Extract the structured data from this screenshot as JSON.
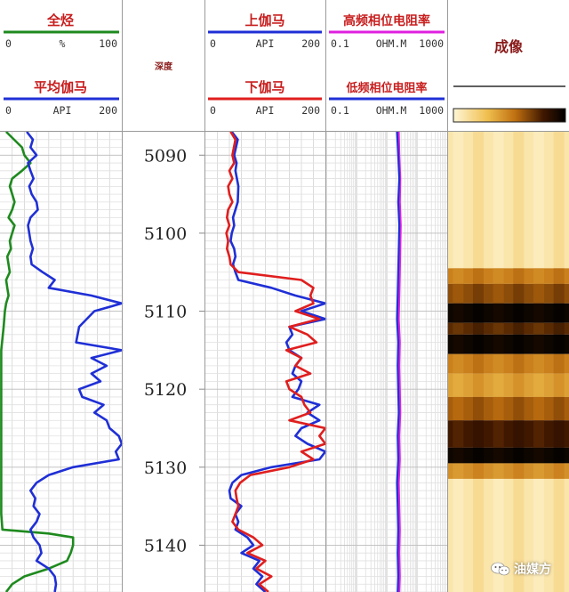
{
  "tracks": {
    "t1": {
      "curve1": {
        "name": "全烃",
        "min": "0",
        "unit": "%",
        "max": "100",
        "color": "#1e8a1e"
      },
      "curve2": {
        "name": "平均伽马",
        "min": "0",
        "unit": "API",
        "max": "200",
        "color": "#1f2fd6"
      }
    },
    "depth": {
      "title": "深度"
    },
    "t2": {
      "curve1": {
        "name": "上伽马",
        "min": "0",
        "unit": "API",
        "max": "200",
        "color": "#1f2fd6"
      },
      "curve2": {
        "name": "下伽马",
        "min": "0",
        "unit": "API",
        "max": "200",
        "color": "#e01e1e"
      }
    },
    "t3": {
      "curve1": {
        "name": "高频相位电阻率",
        "min": "0.1",
        "unit": "OHM.M",
        "max": "1000",
        "color": "#e020e0"
      },
      "curve2": {
        "name": "低频相位电阻率",
        "min": "0.1",
        "unit": "OHM.M",
        "max": "1000",
        "color": "#1f2fd6"
      }
    },
    "t4": {
      "title": "成像"
    }
  },
  "watermark": {
    "text": "油媒方",
    "icon": "wechat-icon"
  },
  "chart_data": {
    "type": "line",
    "depth_ticks": [
      "5090",
      "5100",
      "5110",
      "5120",
      "5130",
      "5140"
    ],
    "ylim": [
      5087,
      5146
    ],
    "grid": true,
    "series": [
      {
        "name": "全烃",
        "track": 1,
        "xlim": [
          0,
          100
        ],
        "points": [
          [
            5087,
            5
          ],
          [
            5089,
            18
          ],
          [
            5090,
            20
          ],
          [
            5091,
            25
          ],
          [
            5092,
            18
          ],
          [
            5093,
            10
          ],
          [
            5094,
            8
          ],
          [
            5096,
            12
          ],
          [
            5097,
            10
          ],
          [
            5098,
            7
          ],
          [
            5099,
            12
          ],
          [
            5100,
            10
          ],
          [
            5101,
            8
          ],
          [
            5102,
            9
          ],
          [
            5103,
            6
          ],
          [
            5104,
            7
          ],
          [
            5105,
            8
          ],
          [
            5106,
            5
          ],
          [
            5107,
            6
          ],
          [
            5108,
            7
          ],
          [
            5109,
            5
          ],
          [
            5110,
            4
          ],
          [
            5112,
            3
          ],
          [
            5115,
            1
          ],
          [
            5120,
            1
          ],
          [
            5125,
            1
          ],
          [
            5130,
            1
          ],
          [
            5133,
            1
          ],
          [
            5136,
            1
          ],
          [
            5138,
            2
          ],
          [
            5138.5,
            40
          ],
          [
            5139,
            60
          ],
          [
            5140,
            60
          ],
          [
            5141,
            58
          ],
          [
            5142,
            55
          ],
          [
            5143,
            40
          ],
          [
            5144,
            20
          ],
          [
            5145,
            10
          ],
          [
            5146,
            5
          ]
        ]
      },
      {
        "name": "平均伽马",
        "track": 1,
        "xlim": [
          0,
          200
        ],
        "points": [
          [
            5087,
            44
          ],
          [
            5088,
            54
          ],
          [
            5089,
            50
          ],
          [
            5090,
            60
          ],
          [
            5091,
            46
          ],
          [
            5092,
            50
          ],
          [
            5093,
            55
          ],
          [
            5094,
            48
          ],
          [
            5095,
            52
          ],
          [
            5096,
            60
          ],
          [
            5097,
            62
          ],
          [
            5098,
            50
          ],
          [
            5099,
            46
          ],
          [
            5100,
            48
          ],
          [
            5101,
            50
          ],
          [
            5102,
            54
          ],
          [
            5103,
            50
          ],
          [
            5104,
            52
          ],
          [
            5105,
            70
          ],
          [
            5106,
            90
          ],
          [
            5107,
            80
          ],
          [
            5108,
            150
          ],
          [
            5109,
            200
          ],
          [
            5110,
            155
          ],
          [
            5112,
            130
          ],
          [
            5114,
            125
          ],
          [
            5115,
            200
          ],
          [
            5116,
            150
          ],
          [
            5117,
            175
          ],
          [
            5118,
            150
          ],
          [
            5119,
            165
          ],
          [
            5120,
            130
          ],
          [
            5121,
            135
          ],
          [
            5122,
            170
          ],
          [
            5123,
            155
          ],
          [
            5124,
            175
          ],
          [
            5125,
            180
          ],
          [
            5126,
            195
          ],
          [
            5127,
            200
          ],
          [
            5128,
            190
          ],
          [
            5129,
            195
          ],
          [
            5130,
            120
          ],
          [
            5131,
            80
          ],
          [
            5132,
            60
          ],
          [
            5133,
            50
          ],
          [
            5134,
            58
          ],
          [
            5135,
            55
          ],
          [
            5136,
            65
          ],
          [
            5137,
            60
          ],
          [
            5138,
            50
          ],
          [
            5139,
            55
          ],
          [
            5140,
            65
          ],
          [
            5141,
            68
          ],
          [
            5142,
            60
          ],
          [
            5143,
            80
          ],
          [
            5144,
            90
          ],
          [
            5145,
            92
          ],
          [
            5146,
            90
          ]
        ]
      },
      {
        "name": "上伽马",
        "track": 2,
        "xlim": [
          0,
          200
        ],
        "points": [
          [
            5087,
            44
          ],
          [
            5088,
            54
          ],
          [
            5090,
            48
          ],
          [
            5091,
            52
          ],
          [
            5092,
            50
          ],
          [
            5094,
            55
          ],
          [
            5096,
            54
          ],
          [
            5097,
            50
          ],
          [
            5098,
            46
          ],
          [
            5099,
            48
          ],
          [
            5100,
            44
          ],
          [
            5101,
            42
          ],
          [
            5102,
            48
          ],
          [
            5103,
            50
          ],
          [
            5104,
            46
          ],
          [
            5105,
            50
          ],
          [
            5106,
            55
          ],
          [
            5107,
            110
          ],
          [
            5108,
            150
          ],
          [
            5109,
            200
          ],
          [
            5110,
            160
          ],
          [
            5111,
            200
          ],
          [
            5112,
            140
          ],
          [
            5113,
            145
          ],
          [
            5114,
            135
          ],
          [
            5115,
            140
          ],
          [
            5116,
            160
          ],
          [
            5117,
            150
          ],
          [
            5118,
            145
          ],
          [
            5119,
            160
          ],
          [
            5120,
            155
          ],
          [
            5121,
            145
          ],
          [
            5122,
            190
          ],
          [
            5123,
            170
          ],
          [
            5124,
            190
          ],
          [
            5125,
            160
          ],
          [
            5126,
            150
          ],
          [
            5127,
            170
          ],
          [
            5128,
            200
          ],
          [
            5129,
            190
          ],
          [
            5130,
            110
          ],
          [
            5131,
            60
          ],
          [
            5132,
            45
          ],
          [
            5133,
            40
          ],
          [
            5134,
            42
          ],
          [
            5135,
            60
          ],
          [
            5136,
            50
          ],
          [
            5137,
            55
          ],
          [
            5138,
            50
          ],
          [
            5139,
            70
          ],
          [
            5140,
            80
          ],
          [
            5141,
            60
          ],
          [
            5142,
            90
          ],
          [
            5143,
            80
          ],
          [
            5144,
            95
          ],
          [
            5145,
            85
          ],
          [
            5146,
            100
          ]
        ]
      },
      {
        "name": "下伽马",
        "track": 2,
        "xlim": [
          0,
          200
        ],
        "points": [
          [
            5087,
            42
          ],
          [
            5088,
            50
          ],
          [
            5090,
            45
          ],
          [
            5091,
            48
          ],
          [
            5092,
            40
          ],
          [
            5093,
            45
          ],
          [
            5094,
            38
          ],
          [
            5095,
            40
          ],
          [
            5096,
            45
          ],
          [
            5097,
            38
          ],
          [
            5098,
            36
          ],
          [
            5099,
            40
          ],
          [
            5100,
            35
          ],
          [
            5101,
            38
          ],
          [
            5102,
            36
          ],
          [
            5103,
            40
          ],
          [
            5104,
            42
          ],
          [
            5105,
            55
          ],
          [
            5106,
            160
          ],
          [
            5107,
            180
          ],
          [
            5108,
            175
          ],
          [
            5109,
            180
          ],
          [
            5110,
            150
          ],
          [
            5111,
            190
          ],
          [
            5112,
            140
          ],
          [
            5113,
            170
          ],
          [
            5114,
            185
          ],
          [
            5115,
            135
          ],
          [
            5116,
            160
          ],
          [
            5117,
            150
          ],
          [
            5118,
            175
          ],
          [
            5119,
            135
          ],
          [
            5120,
            140
          ],
          [
            5121,
            160
          ],
          [
            5122,
            165
          ],
          [
            5123,
            175
          ],
          [
            5124,
            140
          ],
          [
            5125,
            200
          ],
          [
            5126,
            190
          ],
          [
            5127,
            200
          ],
          [
            5128,
            160
          ],
          [
            5129,
            180
          ],
          [
            5130,
            140
          ],
          [
            5131,
            75
          ],
          [
            5132,
            58
          ],
          [
            5133,
            50
          ],
          [
            5134,
            52
          ],
          [
            5135,
            55
          ],
          [
            5136,
            50
          ],
          [
            5137,
            45
          ],
          [
            5138,
            55
          ],
          [
            5139,
            80
          ],
          [
            5140,
            95
          ],
          [
            5141,
            70
          ],
          [
            5142,
            100
          ],
          [
            5143,
            85
          ],
          [
            5144,
            110
          ],
          [
            5145,
            90
          ],
          [
            5146,
            105
          ]
        ]
      },
      {
        "name": "高频相位电阻率",
        "track": 3,
        "xlim": [
          0.1,
          1000
        ],
        "log": true,
        "points": [
          [
            5087,
            25
          ],
          [
            5090,
            26
          ],
          [
            5093,
            28
          ],
          [
            5096,
            27
          ],
          [
            5099,
            29
          ],
          [
            5102,
            28
          ],
          [
            5105,
            27
          ],
          [
            5108,
            26
          ],
          [
            5111,
            25
          ],
          [
            5114,
            27
          ],
          [
            5117,
            26
          ],
          [
            5120,
            27
          ],
          [
            5123,
            28
          ],
          [
            5126,
            26
          ],
          [
            5129,
            27
          ],
          [
            5132,
            25
          ],
          [
            5135,
            26
          ],
          [
            5138,
            27
          ],
          [
            5141,
            26
          ],
          [
            5144,
            27
          ],
          [
            5146,
            26
          ]
        ]
      },
      {
        "name": "低频相位电阻率",
        "track": 3,
        "xlim": [
          0.1,
          1000
        ],
        "log": true,
        "points": [
          [
            5087,
            22
          ],
          [
            5090,
            24
          ],
          [
            5093,
            26
          ],
          [
            5096,
            24
          ],
          [
            5099,
            26
          ],
          [
            5102,
            25
          ],
          [
            5105,
            24
          ],
          [
            5108,
            23
          ],
          [
            5111,
            22
          ],
          [
            5114,
            24
          ],
          [
            5117,
            23
          ],
          [
            5120,
            24
          ],
          [
            5123,
            25
          ],
          [
            5126,
            23
          ],
          [
            5129,
            24
          ],
          [
            5132,
            22
          ],
          [
            5135,
            23
          ],
          [
            5138,
            24
          ],
          [
            5141,
            23
          ],
          [
            5144,
            24
          ],
          [
            5146,
            23
          ]
        ]
      }
    ],
    "image_track": {
      "title": "成像",
      "colorbar": [
        "#fff6d6",
        "#f0c050",
        "#c07010",
        "#401800",
        "#000000"
      ],
      "bands": [
        {
          "top": 5087,
          "bottom": 5104.5,
          "level": 0.08
        },
        {
          "top": 5104.5,
          "bottom": 5106.5,
          "level": 0.45
        },
        {
          "top": 5106.5,
          "bottom": 5109,
          "level": 0.6
        },
        {
          "top": 5109,
          "bottom": 5111.5,
          "level": 0.95
        },
        {
          "top": 5111.5,
          "bottom": 5113,
          "level": 0.7
        },
        {
          "top": 5113,
          "bottom": 5115.5,
          "level": 0.95
        },
        {
          "top": 5115.5,
          "bottom": 5118,
          "level": 0.45
        },
        {
          "top": 5118,
          "bottom": 5121,
          "level": 0.35
        },
        {
          "top": 5121,
          "bottom": 5124,
          "level": 0.55
        },
        {
          "top": 5124,
          "bottom": 5127.5,
          "level": 0.75
        },
        {
          "top": 5127.5,
          "bottom": 5129.5,
          "level": 0.95
        },
        {
          "top": 5129.5,
          "bottom": 5131.5,
          "level": 0.4
        },
        {
          "top": 5131.5,
          "bottom": 5146,
          "level": 0.08
        }
      ]
    }
  }
}
